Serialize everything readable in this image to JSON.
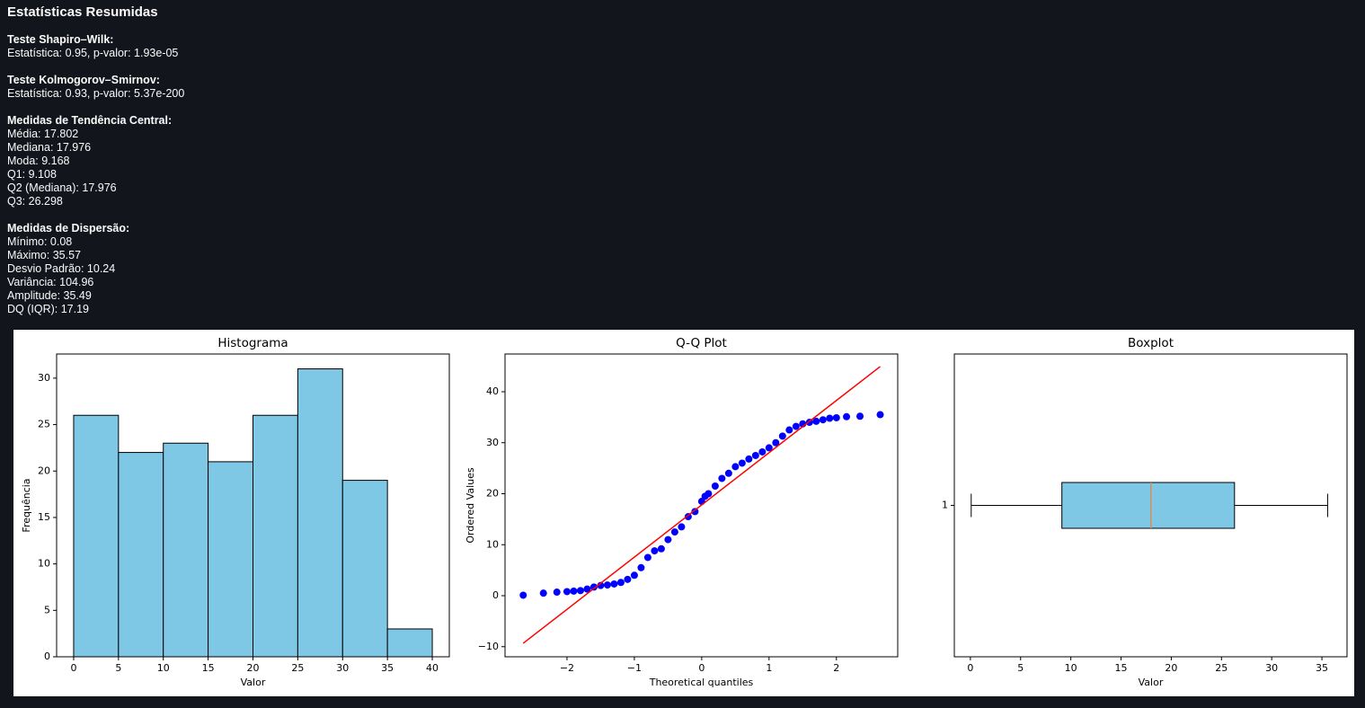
{
  "summary": {
    "title": "Estatísticas Resumidas",
    "sections": [
      {
        "heading": "Teste Shapiro–Wilk:",
        "lines": [
          "Estatística: 0.95, p-valor: 1.93e-05"
        ]
      },
      {
        "heading": "Teste Kolmogorov–Smirnov:",
        "lines": [
          "Estatística: 0.93, p-valor: 5.37e-200"
        ]
      },
      {
        "heading": "Medidas de Tendência Central:",
        "lines": [
          "Média: 17.802",
          "Mediana: 17.976",
          "Moda: 9.168",
          "Q1: 9.108",
          "Q2 (Mediana): 17.976",
          "Q3: 26.298"
        ]
      },
      {
        "heading": "Medidas de Dispersão:",
        "lines": [
          "Mínimo: 0.08",
          "Máximo: 35.57",
          "Desvio Padrão: 10.24",
          "Variância: 104.96",
          "Amplitude: 35.49",
          "DQ (IQR): 17.19"
        ]
      }
    ]
  },
  "chart_data": [
    {
      "type": "histogram",
      "title": "Histograma",
      "xlabel": "Valor",
      "ylabel": "Frequência",
      "bins": [
        0,
        5,
        10,
        15,
        20,
        25,
        30,
        35,
        40
      ],
      "values": [
        26,
        22,
        23,
        21,
        26,
        31,
        19,
        3
      ],
      "color": "#7ec8e6",
      "edgecolor": "#000000",
      "xlim": [
        -1.9,
        41.9
      ],
      "ylim": [
        0,
        32.6
      ],
      "xticks": [
        0,
        5,
        10,
        15,
        20,
        25,
        30,
        35,
        40
      ],
      "yticks": [
        0,
        5,
        10,
        15,
        20,
        25,
        30
      ]
    },
    {
      "type": "scatter",
      "title": "Q-Q Plot",
      "xlabel": "Theoretical quantiles",
      "ylabel": "Ordered Values",
      "series": [
        {
          "color": "#0000ff",
          "mode": "markers",
          "x": [
            -2.65,
            -2.35,
            -2.15,
            -2.0,
            -1.9,
            -1.8,
            -1.7,
            -1.6,
            -1.5,
            -1.4,
            -1.3,
            -1.2,
            -1.1,
            -1.0,
            -0.9,
            -0.8,
            -0.7,
            -0.6,
            -0.5,
            -0.4,
            -0.3,
            -0.2,
            -0.1,
            0.0,
            0.05,
            0.1,
            0.2,
            0.3,
            0.4,
            0.5,
            0.6,
            0.7,
            0.8,
            0.9,
            1.0,
            1.1,
            1.2,
            1.3,
            1.4,
            1.5,
            1.6,
            1.7,
            1.8,
            1.9,
            2.0,
            2.15,
            2.35,
            2.65
          ],
          "values": [
            0.1,
            0.5,
            0.7,
            0.8,
            0.9,
            1.0,
            1.3,
            1.7,
            2.0,
            2.1,
            2.3,
            2.6,
            3.2,
            4.0,
            5.5,
            7.5,
            8.8,
            9.2,
            11,
            12.5,
            13.5,
            15.5,
            16.5,
            18.5,
            19.5,
            20,
            21.5,
            23,
            24,
            25.3,
            26,
            26.8,
            27.5,
            28.2,
            29,
            30,
            31.3,
            32.5,
            33.2,
            33.7,
            34,
            34.2,
            34.5,
            34.8,
            34.9,
            35.1,
            35.2,
            35.5
          ]
        },
        {
          "color": "#ff0000",
          "mode": "line",
          "x": [
            -2.65,
            2.65
          ],
          "values": [
            -9.33,
            44.94
          ]
        }
      ],
      "xlim": [
        -2.92,
        2.91
      ],
      "ylim": [
        -11.98,
        47.4
      ],
      "xticks": [
        {
          "value": -2,
          "label": "−2"
        },
        {
          "value": -1,
          "label": "−1"
        },
        0,
        1,
        2
      ],
      "yticks": [
        {
          "value": -10,
          "label": "−10"
        },
        0,
        10,
        20,
        30,
        40
      ]
    },
    {
      "type": "boxplot",
      "title": "Boxplot",
      "xlabel": "Valor",
      "orientation": "horizontal",
      "categories": [
        "1"
      ],
      "boxes": [
        {
          "whislo": 0.08,
          "q1": 9.108,
          "med": 17.976,
          "q3": 26.298,
          "whishi": 35.57
        }
      ],
      "color": "#7ec8e6",
      "median_color": "#e8803a",
      "xlim": [
        -1.6,
        37.5
      ],
      "ylim": [
        0.5,
        1.5
      ],
      "xticks": [
        0,
        5,
        10,
        15,
        20,
        25,
        30,
        35
      ]
    }
  ]
}
